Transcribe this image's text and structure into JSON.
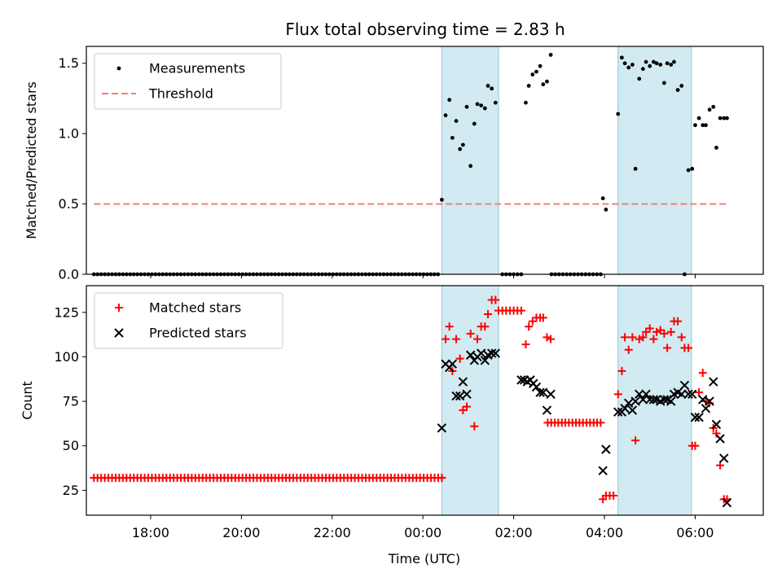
{
  "title": "Flux total observing time = 2.83 h",
  "chart_data": [
    {
      "type": "scatter",
      "ylabel": "Matched/Predicted stars",
      "xlabel": "",
      "xlim": [
        "16:35",
        "07:30"
      ],
      "ylim": [
        0,
        1.62
      ],
      "yticks": [
        0.0,
        0.5,
        1.0,
        1.5
      ],
      "ytick_labels": [
        "0.0",
        "0.5",
        "1.0",
        "1.5"
      ],
      "xtick_labels_visible": false,
      "legend_position": "top-left",
      "legend": [
        {
          "label": "Measurements",
          "marker": "dot",
          "color": "#000000"
        },
        {
          "label": "Threshold",
          "marker": "dashed-line",
          "color": "#f08080"
        }
      ],
      "threshold": {
        "value": 0.5,
        "x_start": "16:45",
        "x_end": "06:45",
        "color": "#f08080"
      },
      "shaded_regions": [
        [
          "00:25",
          "01:40"
        ],
        [
          "04:18",
          "05:55"
        ]
      ],
      "shade_color": "#add8e6",
      "series": [
        {
          "name": "Measurements",
          "color": "#000000",
          "zero_runs": [
            [
              "16:45",
              "00:20",
              96
            ],
            [
              "01:45",
              "02:10",
              6
            ],
            [
              "02:50",
              "03:55",
              14
            ]
          ],
          "x": [
            "00:25",
            "00:30",
            "00:35",
            "00:39",
            "00:44",
            "00:49",
            "00:53",
            "00:58",
            "01:03",
            "01:08",
            "01:12",
            "01:17",
            "01:22",
            "01:26",
            "01:31",
            "01:36",
            "02:16",
            "02:20",
            "02:25",
            "02:30",
            "02:35",
            "02:39",
            "02:44",
            "02:49",
            "03:58",
            "04:02",
            "04:18",
            "04:23",
            "04:27",
            "04:32",
            "04:37",
            "04:41",
            "04:46",
            "04:51",
            "04:55",
            "05:00",
            "05:05",
            "05:09",
            "05:14",
            "05:19",
            "05:23",
            "05:28",
            "05:32",
            "05:37",
            "05:42",
            "05:46",
            "05:51",
            "05:56",
            "06:00",
            "06:05",
            "06:10",
            "06:14",
            "06:19",
            "06:24",
            "06:28",
            "06:33",
            "06:38",
            "06:42"
          ],
          "y": [
            0.53,
            1.13,
            1.24,
            0.97,
            1.09,
            0.89,
            0.92,
            1.19,
            0.77,
            1.07,
            1.21,
            1.2,
            1.18,
            1.34,
            1.32,
            1.22,
            1.22,
            1.34,
            1.42,
            1.44,
            1.48,
            1.35,
            1.37,
            1.56,
            0.54,
            0.46,
            1.14,
            1.54,
            1.5,
            1.47,
            1.49,
            0.75,
            1.39,
            1.46,
            1.51,
            1.48,
            1.51,
            1.5,
            1.49,
            1.36,
            1.5,
            1.49,
            1.51,
            1.31,
            1.34,
            0.0,
            0.74,
            0.75,
            1.06,
            1.11,
            1.06,
            1.06,
            1.17,
            1.19,
            0.9,
            1.11,
            1.11,
            1.11
          ]
        }
      ]
    },
    {
      "type": "scatter",
      "ylabel": "Count",
      "xlabel": "Time (UTC)",
      "xlim": [
        "16:35",
        "07:30"
      ],
      "ylim": [
        11,
        140
      ],
      "yticks": [
        25,
        50,
        75,
        100,
        125
      ],
      "ytick_labels": [
        "25",
        "50",
        "75",
        "100",
        "125"
      ],
      "xticks": [
        "18:00",
        "20:00",
        "22:00",
        "00:00",
        "02:00",
        "04:00",
        "06:00"
      ],
      "xtick_labels": [
        "18:00",
        "20:00",
        "22:00",
        "00:00",
        "02:00",
        "04:00",
        "06:00"
      ],
      "legend_position": "top-left",
      "legend": [
        {
          "label": "Matched stars",
          "marker": "plus",
          "color": "#ff0000"
        },
        {
          "label": "Predicted stars",
          "marker": "x",
          "color": "#000000"
        }
      ],
      "shaded_regions": [
        [
          "00:25",
          "01:40"
        ],
        [
          "04:18",
          "05:55"
        ]
      ],
      "shade_color": "#add8e6",
      "series": [
        {
          "name": "Matched stars",
          "marker": "plus",
          "color": "#ff0000",
          "constant_runs": [
            [
              "16:45",
              "00:25",
              32,
              97
            ],
            [
              "01:40",
              "02:10",
              126,
              7
            ],
            [
              "02:45",
              "03:55",
              63,
              16
            ]
          ],
          "x": [
            "00:25",
            "00:30",
            "00:35",
            "00:39",
            "00:44",
            "00:49",
            "00:53",
            "00:58",
            "01:03",
            "01:08",
            "01:12",
            "01:17",
            "01:22",
            "01:26",
            "01:31",
            "01:36",
            "02:16",
            "02:20",
            "02:25",
            "02:30",
            "02:35",
            "02:39",
            "02:44",
            "02:49",
            "03:58",
            "04:02",
            "04:07",
            "04:12",
            "04:18",
            "04:23",
            "04:27",
            "04:32",
            "04:37",
            "04:41",
            "04:46",
            "04:51",
            "04:55",
            "05:00",
            "05:05",
            "05:09",
            "05:14",
            "05:19",
            "05:23",
            "05:28",
            "05:32",
            "05:37",
            "05:42",
            "05:46",
            "05:51",
            "05:56",
            "06:00",
            "06:05",
            "06:10",
            "06:14",
            "06:19",
            "06:24",
            "06:28",
            "06:33",
            "06:38",
            "06:42"
          ],
          "y": [
            32,
            110,
            117,
            92,
            110,
            99,
            70,
            72,
            113,
            61,
            110,
            117,
            117,
            124,
            132,
            132,
            107,
            117,
            120,
            122,
            122,
            122,
            111,
            110,
            20,
            22,
            22,
            22,
            79,
            92,
            111,
            104,
            111,
            53,
            110,
            111,
            114,
            116,
            110,
            114,
            115,
            113,
            105,
            114,
            120,
            120,
            111,
            105,
            105,
            50,
            50,
            80,
            91,
            75,
            74,
            60,
            57,
            39,
            20,
            20
          ]
        },
        {
          "name": "Predicted stars",
          "marker": "x",
          "color": "#000000",
          "x": [
            "00:25",
            "00:30",
            "00:35",
            "00:39",
            "00:44",
            "00:49",
            "00:53",
            "00:58",
            "01:03",
            "01:08",
            "01:12",
            "01:17",
            "01:22",
            "01:26",
            "01:31",
            "01:36",
            "02:10",
            "02:14",
            "02:18",
            "02:22",
            "02:26",
            "02:30",
            "02:35",
            "02:39",
            "02:44",
            "02:49",
            "03:58",
            "04:02",
            "04:18",
            "04:23",
            "04:27",
            "04:32",
            "04:37",
            "04:41",
            "04:46",
            "04:51",
            "04:55",
            "05:00",
            "05:05",
            "05:09",
            "05:14",
            "05:19",
            "05:23",
            "05:28",
            "05:32",
            "05:37",
            "05:42",
            "05:46",
            "05:51",
            "05:56",
            "06:00",
            "06:05",
            "06:10",
            "06:14",
            "06:19",
            "06:24",
            "06:28",
            "06:33",
            "06:38",
            "06:42"
          ],
          "y": [
            60,
            96,
            94,
            96,
            78,
            78,
            86,
            79,
            101,
            98,
            100,
            102,
            98,
            101,
            102,
            102,
            87,
            87,
            86,
            87,
            85,
            83,
            80,
            80,
            70,
            79,
            36,
            48,
            69,
            69,
            71,
            74,
            70,
            75,
            79,
            76,
            79,
            76,
            76,
            76,
            75,
            76,
            76,
            75,
            79,
            80,
            79,
            84,
            79,
            79,
            66,
            66,
            76,
            71,
            75,
            86,
            62,
            54,
            43,
            18
          ]
        }
      ]
    }
  ]
}
